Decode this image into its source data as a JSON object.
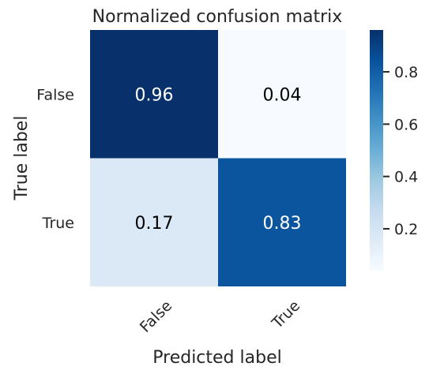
{
  "chart_data": {
    "type": "heatmap",
    "title": "Normalized confusion matrix",
    "xlabel": "Predicted label",
    "ylabel": "True label",
    "x_categories": [
      "False",
      "True"
    ],
    "y_categories": [
      "False",
      "True"
    ],
    "values": [
      [
        0.96,
        0.04
      ],
      [
        0.17,
        0.83
      ]
    ],
    "cell_labels": [
      [
        "0.96",
        "0.04"
      ],
      [
        "0.17",
        "0.83"
      ]
    ],
    "colormap": "Blues",
    "color_range": [
      0.04,
      0.96
    ],
    "colorbar_ticks": [
      0.2,
      0.4,
      0.6,
      0.8
    ],
    "colorbar_tick_labels": [
      "0.2",
      "0.4",
      "0.6",
      "0.8"
    ]
  }
}
